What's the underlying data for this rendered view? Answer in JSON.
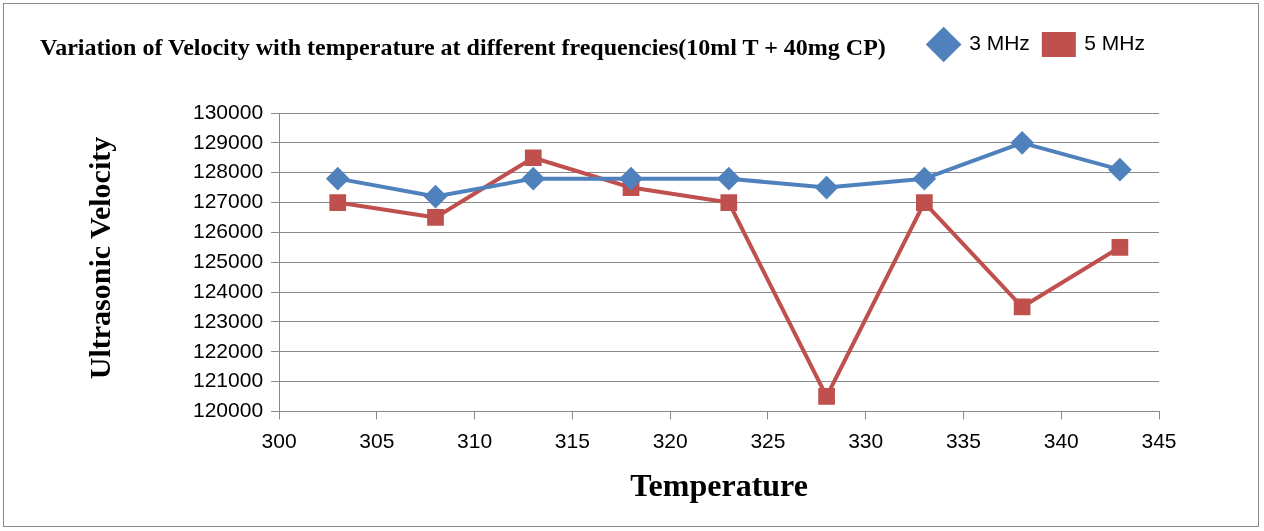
{
  "chart_data": {
    "type": "line",
    "title": "Variation of Velocity with temperature at different frequencies(10ml T + 40mg CP)",
    "xlabel": "Temperature",
    "ylabel": "Ultrasonic Velocity",
    "x": [
      303,
      308,
      313,
      318,
      323,
      328,
      333,
      338,
      343
    ],
    "series": [
      {
        "name": "3 MHz",
        "color": "#4f81bd",
        "marker": "diamond",
        "values": [
          127800,
          127200,
          127800,
          127800,
          127800,
          127500,
          127800,
          129000,
          128100
        ]
      },
      {
        "name": "5 MHz",
        "color": "#c0504d",
        "marker": "square",
        "values": [
          127000,
          126500,
          128500,
          127500,
          127000,
          120500,
          127000,
          123500,
          125500
        ]
      }
    ],
    "xlim": [
      300,
      345
    ],
    "xticks": [
      300,
      305,
      310,
      315,
      320,
      325,
      330,
      335,
      340,
      345
    ],
    "ylim": [
      120000,
      130000
    ],
    "yticks": [
      120000,
      121000,
      122000,
      123000,
      124000,
      125000,
      126000,
      127000,
      128000,
      129000,
      130000
    ],
    "grid": "y",
    "legend": "top right",
    "line_style": "solid"
  }
}
